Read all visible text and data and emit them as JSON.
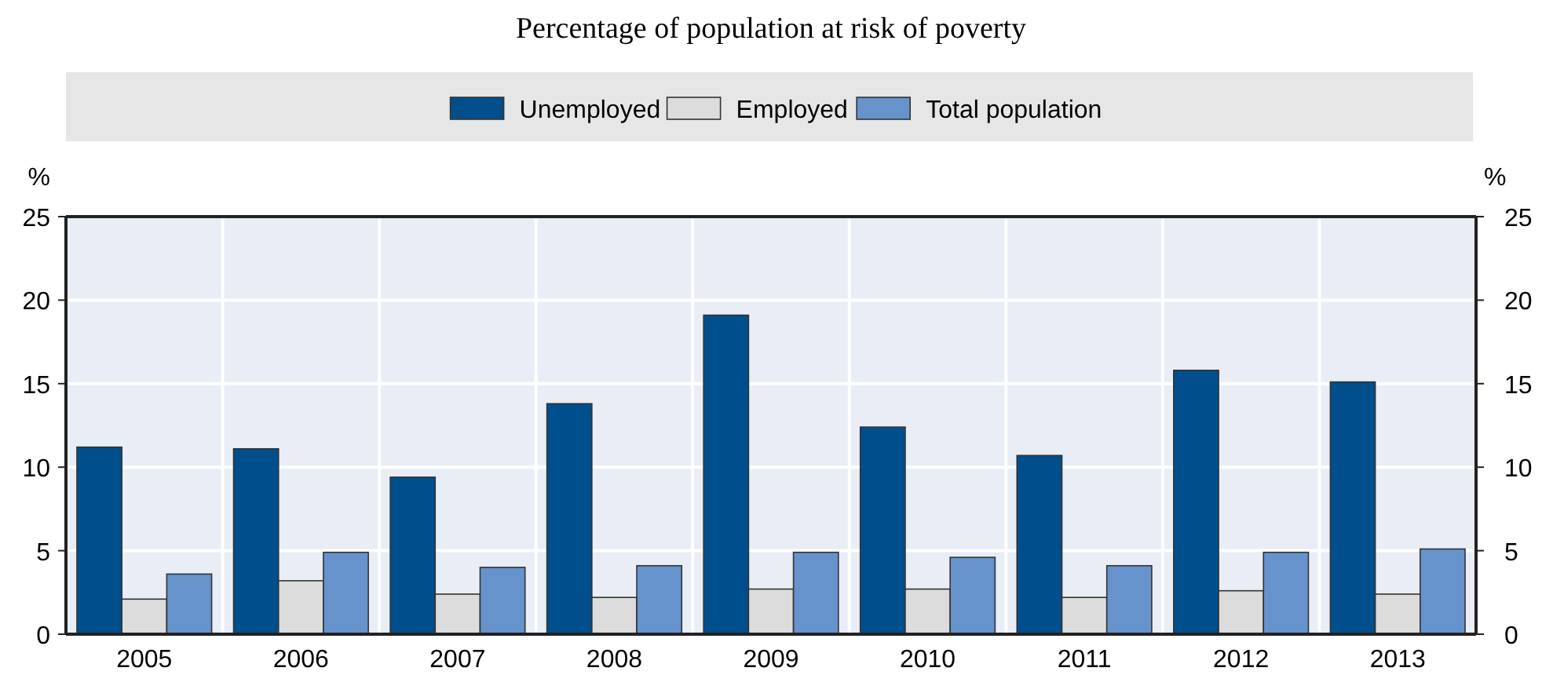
{
  "chart_data": {
    "type": "bar",
    "title": "Percentage of population at risk of poverty",
    "ylabel": "%",
    "y2label": "%",
    "categories": [
      "2005",
      "2006",
      "2007",
      "2008",
      "2009",
      "2010",
      "2011",
      "2012",
      "2013"
    ],
    "series": [
      {
        "name": "Unemployed",
        "color": "#004f8c",
        "values": [
          11.2,
          11.1,
          9.4,
          13.8,
          19.1,
          12.4,
          10.7,
          15.8,
          15.1
        ]
      },
      {
        "name": "Employed",
        "color": "#dcdcdc",
        "values": [
          2.1,
          3.2,
          2.4,
          2.2,
          2.7,
          2.7,
          2.2,
          2.6,
          2.4
        ]
      },
      {
        "name": "Total population",
        "color": "#6693cc",
        "values": [
          3.6,
          4.9,
          4.0,
          4.1,
          4.9,
          4.6,
          4.1,
          4.9,
          5.1
        ]
      }
    ],
    "ylim": [
      0,
      25
    ],
    "yticks": [
      0,
      5,
      10,
      15,
      20,
      25
    ],
    "y2lim": [
      0,
      25
    ],
    "y2ticks": [
      0,
      5,
      10,
      15,
      20,
      25
    ],
    "grid": true,
    "legend": "top"
  }
}
